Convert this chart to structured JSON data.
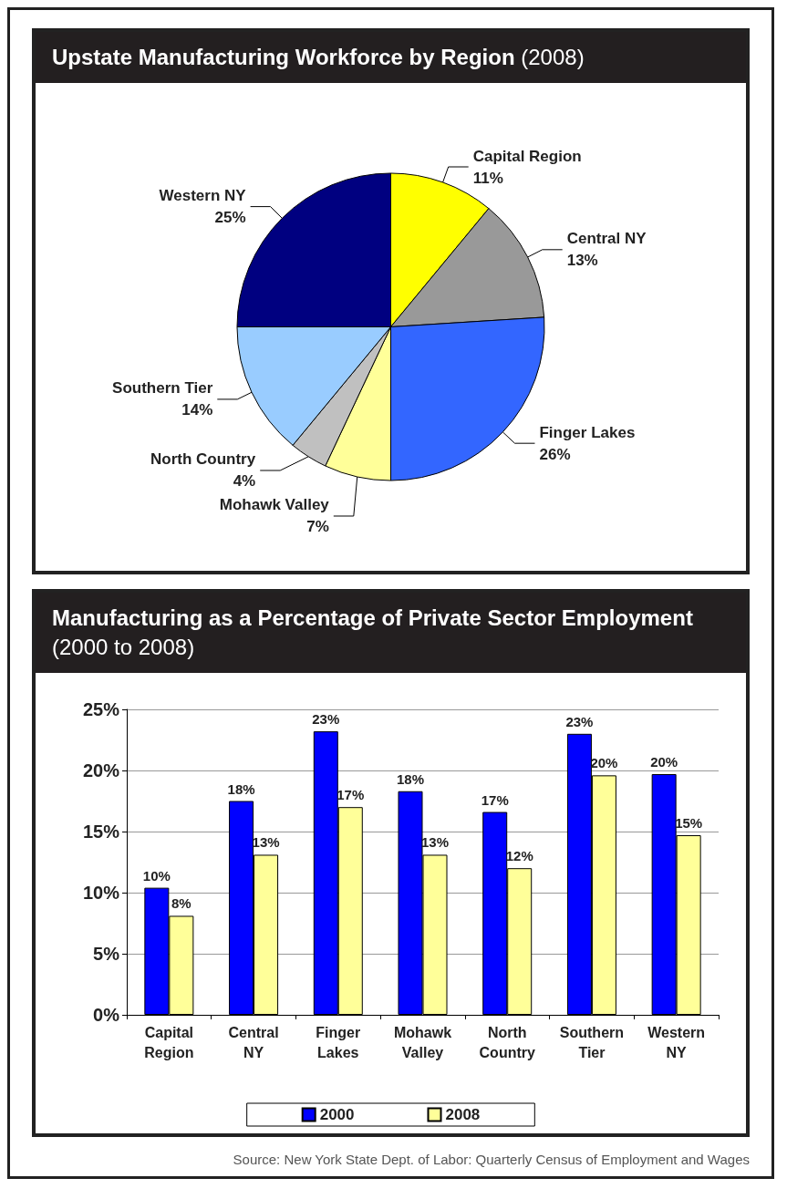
{
  "chart_data": [
    {
      "type": "pie",
      "title": "Upstate Manufacturing Workforce by Region",
      "subtitle": "(2008)",
      "categories": [
        "Capital Region",
        "Central NY",
        "Finger Lakes",
        "Mohawk Valley",
        "North Country",
        "Southern Tier",
        "Western NY"
      ],
      "values": [
        11,
        13,
        26,
        7,
        4,
        14,
        25
      ],
      "value_labels": [
        "11%",
        "13%",
        "26%",
        "7%",
        "4%",
        "14%",
        "25%"
      ],
      "colors": [
        "#ffff00",
        "#999999",
        "#3366ff",
        "#ffff99",
        "#c0c0c0",
        "#99ccff",
        "#000080"
      ]
    },
    {
      "type": "bar",
      "title": "Manufacturing as a Percentage of Private Sector Employment",
      "subtitle": "(2000 to 2008)",
      "categories": [
        "Capital Region",
        "Central NY",
        "Finger Lakes",
        "Mohawk Valley",
        "North Country",
        "Southern Tier",
        "Western NY"
      ],
      "series": [
        {
          "name": "2000",
          "color": "#0000ff",
          "values": [
            10.4,
            17.5,
            23.2,
            18.3,
            16.6,
            23.0,
            19.7
          ],
          "value_labels": [
            "10%",
            "18%",
            "23%",
            "18%",
            "17%",
            "23%",
            "20%"
          ]
        },
        {
          "name": "2008",
          "color": "#ffff99",
          "values": [
            8.1,
            13.1,
            17.0,
            13.1,
            12.0,
            19.6,
            14.7
          ],
          "value_labels": [
            "8%",
            "13%",
            "17%",
            "13%",
            "12%",
            "20%",
            "15%"
          ]
        }
      ],
      "ylim": [
        0,
        25
      ],
      "yticks": [
        {
          "value": 0,
          "label": "0%"
        },
        {
          "value": 5,
          "label": "5%"
        },
        {
          "value": 10,
          "label": "10%"
        },
        {
          "value": 15,
          "label": "15%"
        },
        {
          "value": 20,
          "label": "20%"
        },
        {
          "value": 25,
          "label": "25%"
        }
      ],
      "grid": "y",
      "legend": "bottom",
      "annotations": [
        "Source: New York State Dept. of Labor: Quarterly Census of Employment and Wages"
      ]
    }
  ]
}
